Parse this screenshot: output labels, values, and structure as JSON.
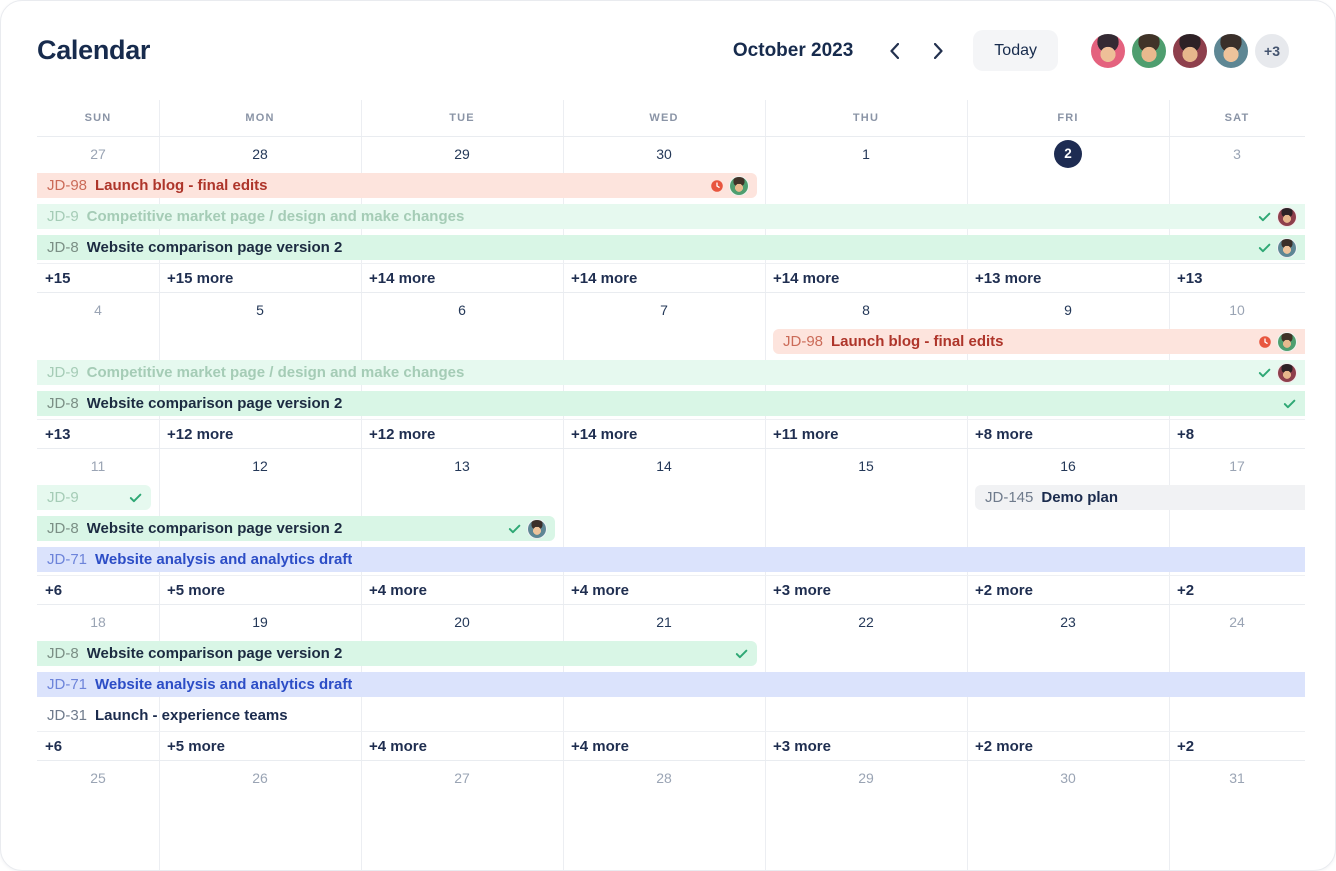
{
  "header": {
    "title": "Calendar",
    "month": "October 2023",
    "today_label": "Today"
  },
  "avatars": {
    "people": [
      {
        "bg": "#e4627e",
        "hair": "#342a33",
        "skin": "#eebf98"
      },
      {
        "bg": "#4f9e6f",
        "hair": "#403328",
        "skin": "#e9b98e"
      },
      {
        "bg": "#8e3f4c",
        "hair": "#2e2126",
        "skin": "#e7b68c"
      },
      {
        "bg": "#5e8794",
        "hair": "#3a2f2a",
        "skin": "#eec39b"
      }
    ],
    "overflow": "+3"
  },
  "colors": {
    "check": "#2fa875",
    "clock": "#e8563f",
    "today_badge": "#1e2c52"
  },
  "palette": {
    "red": {
      "bg": "#fde4dd",
      "key": "#cb6b58",
      "text": "#ae352a"
    },
    "green_muted": {
      "bg": "#e6f9ef",
      "key": "#a5ccb6",
      "text": "#a5ccb6"
    },
    "green": {
      "bg": "#d9f6e6",
      "key": "#7b8f85",
      "text": "#1c2b41"
    },
    "blue": {
      "bg": "#dbe3fc",
      "key": "#6d84da",
      "text": "#2c4dc6"
    },
    "gray": {
      "bg": "#f1f2f4",
      "key": "#6f7b8c",
      "text": "#1b2b4d"
    },
    "plain": {
      "bg": "transparent",
      "key": "#6f7b8c",
      "text": "#1b2b4d"
    }
  },
  "calendar": {
    "weekdays": [
      "SUN",
      "MON",
      "TUE",
      "WED",
      "THU",
      "FRI",
      "SAT"
    ],
    "weeks": [
      {
        "dates": [
          {
            "d": "27",
            "muted": true
          },
          {
            "d": "28"
          },
          {
            "d": "29"
          },
          {
            "d": "30"
          },
          {
            "d": "1"
          },
          {
            "d": "2",
            "today": true
          },
          {
            "d": "3",
            "muted": true
          }
        ],
        "lanes": [
          [
            {
              "key": "JD-98",
              "summary": "Launch blog - final edits",
              "color": "red",
              "start": 1,
              "span": 4,
              "icons": [
                "clock",
                "avatar"
              ],
              "avatar": 1
            }
          ],
          [
            {
              "key": "JD-9",
              "summary": "Competitive market page / design and make changes",
              "color": "green_muted",
              "start": 1,
              "span": 7,
              "icons": [
                "check",
                "avatar"
              ],
              "avatar": 2
            }
          ],
          [
            {
              "key": "JD-8",
              "summary": "Website comparison page version 2",
              "color": "green",
              "start": 1,
              "span": 7,
              "icons": [
                "check",
                "avatar"
              ],
              "avatar": 3
            }
          ]
        ],
        "more": [
          "+15",
          "+15 more",
          "+14 more",
          "+14 more",
          "+14 more",
          "+13 more",
          "+13"
        ]
      },
      {
        "dates": [
          {
            "d": "4",
            "muted": true
          },
          {
            "d": "5"
          },
          {
            "d": "6"
          },
          {
            "d": "7"
          },
          {
            "d": "8"
          },
          {
            "d": "9"
          },
          {
            "d": "10",
            "muted": true
          }
        ],
        "lanes": [
          [
            {
              "key": "JD-98",
              "summary": "Launch blog - final edits",
              "color": "red",
              "start": 5,
              "span": 3,
              "icons": [
                "clock",
                "avatar"
              ],
              "avatar": 1
            }
          ],
          [
            {
              "key": "JD-9",
              "summary": "Competitive market page / design and make changes",
              "color": "green_muted",
              "start": 1,
              "span": 7,
              "icons": [
                "check",
                "avatar"
              ],
              "avatar": 2
            }
          ],
          [
            {
              "key": "JD-8",
              "summary": "Website comparison page version 2",
              "color": "green",
              "start": 1,
              "span": 7,
              "icons": [
                "check"
              ]
            }
          ]
        ],
        "more": [
          "+13",
          "+12 more",
          "+12 more",
          "+14 more",
          "+11 more",
          "+8 more",
          "+8"
        ]
      },
      {
        "dates": [
          {
            "d": "11",
            "muted": true
          },
          {
            "d": "12"
          },
          {
            "d": "13"
          },
          {
            "d": "14"
          },
          {
            "d": "15"
          },
          {
            "d": "16"
          },
          {
            "d": "17",
            "muted": true
          }
        ],
        "lanes": [
          [
            {
              "key": "JD-9",
              "summary": "",
              "color": "green_muted",
              "start": 1,
              "span": 1,
              "icons": [
                "check"
              ]
            },
            {
              "key": "JD-145",
              "summary": "Demo plan",
              "color": "gray",
              "start": 6,
              "span": 2,
              "icons": []
            }
          ],
          [
            {
              "key": "JD-8",
              "summary": "Website comparison page version 2",
              "color": "green",
              "start": 1,
              "span": 3,
              "icons": [
                "check",
                "avatar"
              ],
              "avatar": 3
            }
          ],
          [
            {
              "key": "JD-71",
              "summary": "Website analysis and analytics draft",
              "color": "blue",
              "start": 1,
              "span": 7,
              "icons": []
            }
          ]
        ],
        "more": [
          "+6",
          "+5 more",
          "+4 more",
          "+4 more",
          "+3 more",
          "+2 more",
          "+2"
        ]
      },
      {
        "dates": [
          {
            "d": "18",
            "muted": true
          },
          {
            "d": "19"
          },
          {
            "d": "20"
          },
          {
            "d": "21"
          },
          {
            "d": "22"
          },
          {
            "d": "23"
          },
          {
            "d": "24",
            "muted": true
          }
        ],
        "lanes": [
          [
            {
              "key": "JD-8",
              "summary": "Website comparison page version 2",
              "color": "green",
              "start": 1,
              "span": 4,
              "icons": [
                "check"
              ]
            }
          ],
          [
            {
              "key": "JD-71",
              "summary": "Website analysis and analytics draft",
              "color": "blue",
              "start": 1,
              "span": 7,
              "icons": []
            }
          ],
          [
            {
              "key": "JD-31",
              "summary": "Launch - experience teams",
              "color": "plain",
              "start": 1,
              "span": 7,
              "icons": []
            }
          ]
        ],
        "more": [
          "+6",
          "+5 more",
          "+4 more",
          "+4 more",
          "+3 more",
          "+2 more",
          "+2"
        ]
      },
      {
        "dates": [
          {
            "d": "25",
            "muted": true
          },
          {
            "d": "26",
            "muted": true
          },
          {
            "d": "27",
            "muted": true
          },
          {
            "d": "28",
            "muted": true
          },
          {
            "d": "29",
            "muted": true
          },
          {
            "d": "30",
            "muted": true
          },
          {
            "d": "31",
            "muted": true
          }
        ],
        "lanes": [],
        "more": []
      }
    ]
  }
}
